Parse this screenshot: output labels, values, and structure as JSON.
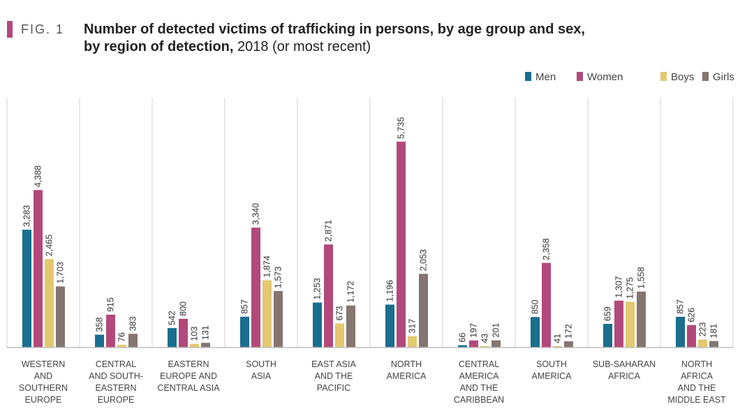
{
  "figure_label": "FIG. 1",
  "colors": {
    "accent": "#b2497a",
    "Men": "#1a6e8e",
    "Women": "#b2497a",
    "Boys": "#e3c870",
    "Girls": "#857570",
    "grid": "#d0d0d0",
    "axis": "#bdbdbd"
  },
  "chart_data": {
    "type": "bar",
    "title_bold_line1": "Number of detected victims of trafficking in persons, by age group and sex,",
    "title_bold_line2": "by region of detection,",
    "title_rest_line2": " 2018 (or most recent)",
    "xlabel": "",
    "ylabel": "",
    "ylim": [
      0,
      6000
    ],
    "grid": false,
    "legend_position": "top-right",
    "categories": [
      [
        "WESTERN",
        "AND",
        "SOUTHERN",
        "EUROPE"
      ],
      [
        "CENTRAL",
        "AND SOUTH-",
        "EASTERN",
        "EUROPE"
      ],
      [
        "EASTERN",
        "EUROPE AND",
        "CENTRAL ASIA"
      ],
      [
        "SOUTH",
        "ASIA"
      ],
      [
        "EAST ASIA",
        "AND THE",
        "PACIFIC"
      ],
      [
        "NORTH",
        "AMERICA"
      ],
      [
        "CENTRAL",
        "AMERICA",
        "AND THE",
        "CARIBBEAN"
      ],
      [
        "SOUTH",
        "AMERICA"
      ],
      [
        "SUB-SAHARAN",
        "AFRICA"
      ],
      [
        "NORTH",
        "AFRICA",
        "AND THE",
        "MIDDLE EAST"
      ]
    ],
    "series": [
      {
        "name": "Men",
        "values": [
          3283,
          358,
          542,
          857,
          1253,
          1196,
          66,
          850,
          659,
          857
        ],
        "labels": [
          "3,283",
          "358",
          "542",
          "857",
          "1,253",
          "1,196",
          "66",
          "850",
          "659",
          "857"
        ]
      },
      {
        "name": "Women",
        "values": [
          4388,
          915,
          800,
          3340,
          2871,
          5735,
          197,
          2358,
          1307,
          626
        ],
        "labels": [
          "4,388",
          "915",
          "800",
          "3,340",
          "2,871",
          "5,735",
          "197",
          "2,358",
          "1,307",
          "626"
        ]
      },
      {
        "name": "Boys",
        "values": [
          2465,
          76,
          103,
          1874,
          673,
          317,
          43,
          41,
          1275,
          223
        ],
        "labels": [
          "2,465",
          "76",
          "103",
          "1,874",
          "673",
          "317",
          "43",
          "41",
          "1,275",
          "223"
        ]
      },
      {
        "name": "Girls",
        "values": [
          1703,
          383,
          131,
          1573,
          1172,
          2053,
          201,
          172,
          1558,
          181
        ],
        "labels": [
          "1,703",
          "383",
          "131",
          "1,573",
          "1,172",
          "2,053",
          "201",
          "172",
          "1,558",
          "181"
        ]
      }
    ]
  }
}
